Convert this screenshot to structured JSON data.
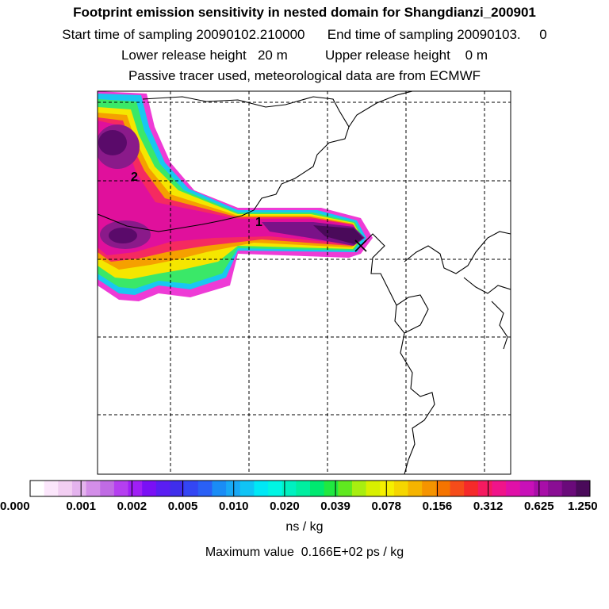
{
  "title": {
    "line1": "Footprint emission sensitivity in nested domain for Shangdianzi_200901",
    "line2": "Start time of sampling 20090102.210000      End time of sampling 20090103.     0",
    "line3": "Lower release height   20 m          Upper release height    0 m",
    "line4": "Passive tracer used, meteorological data are from ECMWF"
  },
  "map": {
    "contour_labels": [
      "1",
      "2"
    ],
    "receptor_marker": "x-icon"
  },
  "legend": {
    "tick_labels": [
      "0.000",
      "0.001",
      "0.002",
      "0.005",
      "0.010",
      "0.020",
      "0.039",
      "0.078",
      "0.156",
      "0.312",
      "0.625",
      "1.250"
    ],
    "colors": [
      "#ffffff",
      "#fbe6fb",
      "#f2cef2",
      "#e4b3ee",
      "#d38ee8",
      "#c06be4",
      "#b53ff0",
      "#a01ff5",
      "#7a10f5",
      "#5a1ef2",
      "#3f2eeb",
      "#3346f4",
      "#2a60f5",
      "#1a8cf5",
      "#18a8f5",
      "#10c4f5",
      "#00e8f5",
      "#00f5e4",
      "#00f0c0",
      "#00eea0",
      "#00e870",
      "#20e840",
      "#60e820",
      "#a8ee10",
      "#d8f000",
      "#f5f000",
      "#f5d600",
      "#f5b400",
      "#f59400",
      "#f57400",
      "#f54c1a",
      "#f52a2a",
      "#f51a60",
      "#f0148a",
      "#e010a8",
      "#c810b8",
      "#a80ea8",
      "#8a0e94",
      "#6a0a7a",
      "#4a0a5a"
    ],
    "units": "ns / kg"
  },
  "footer": {
    "max_value": "Maximum value  0.166E+02 ps / kg"
  }
}
